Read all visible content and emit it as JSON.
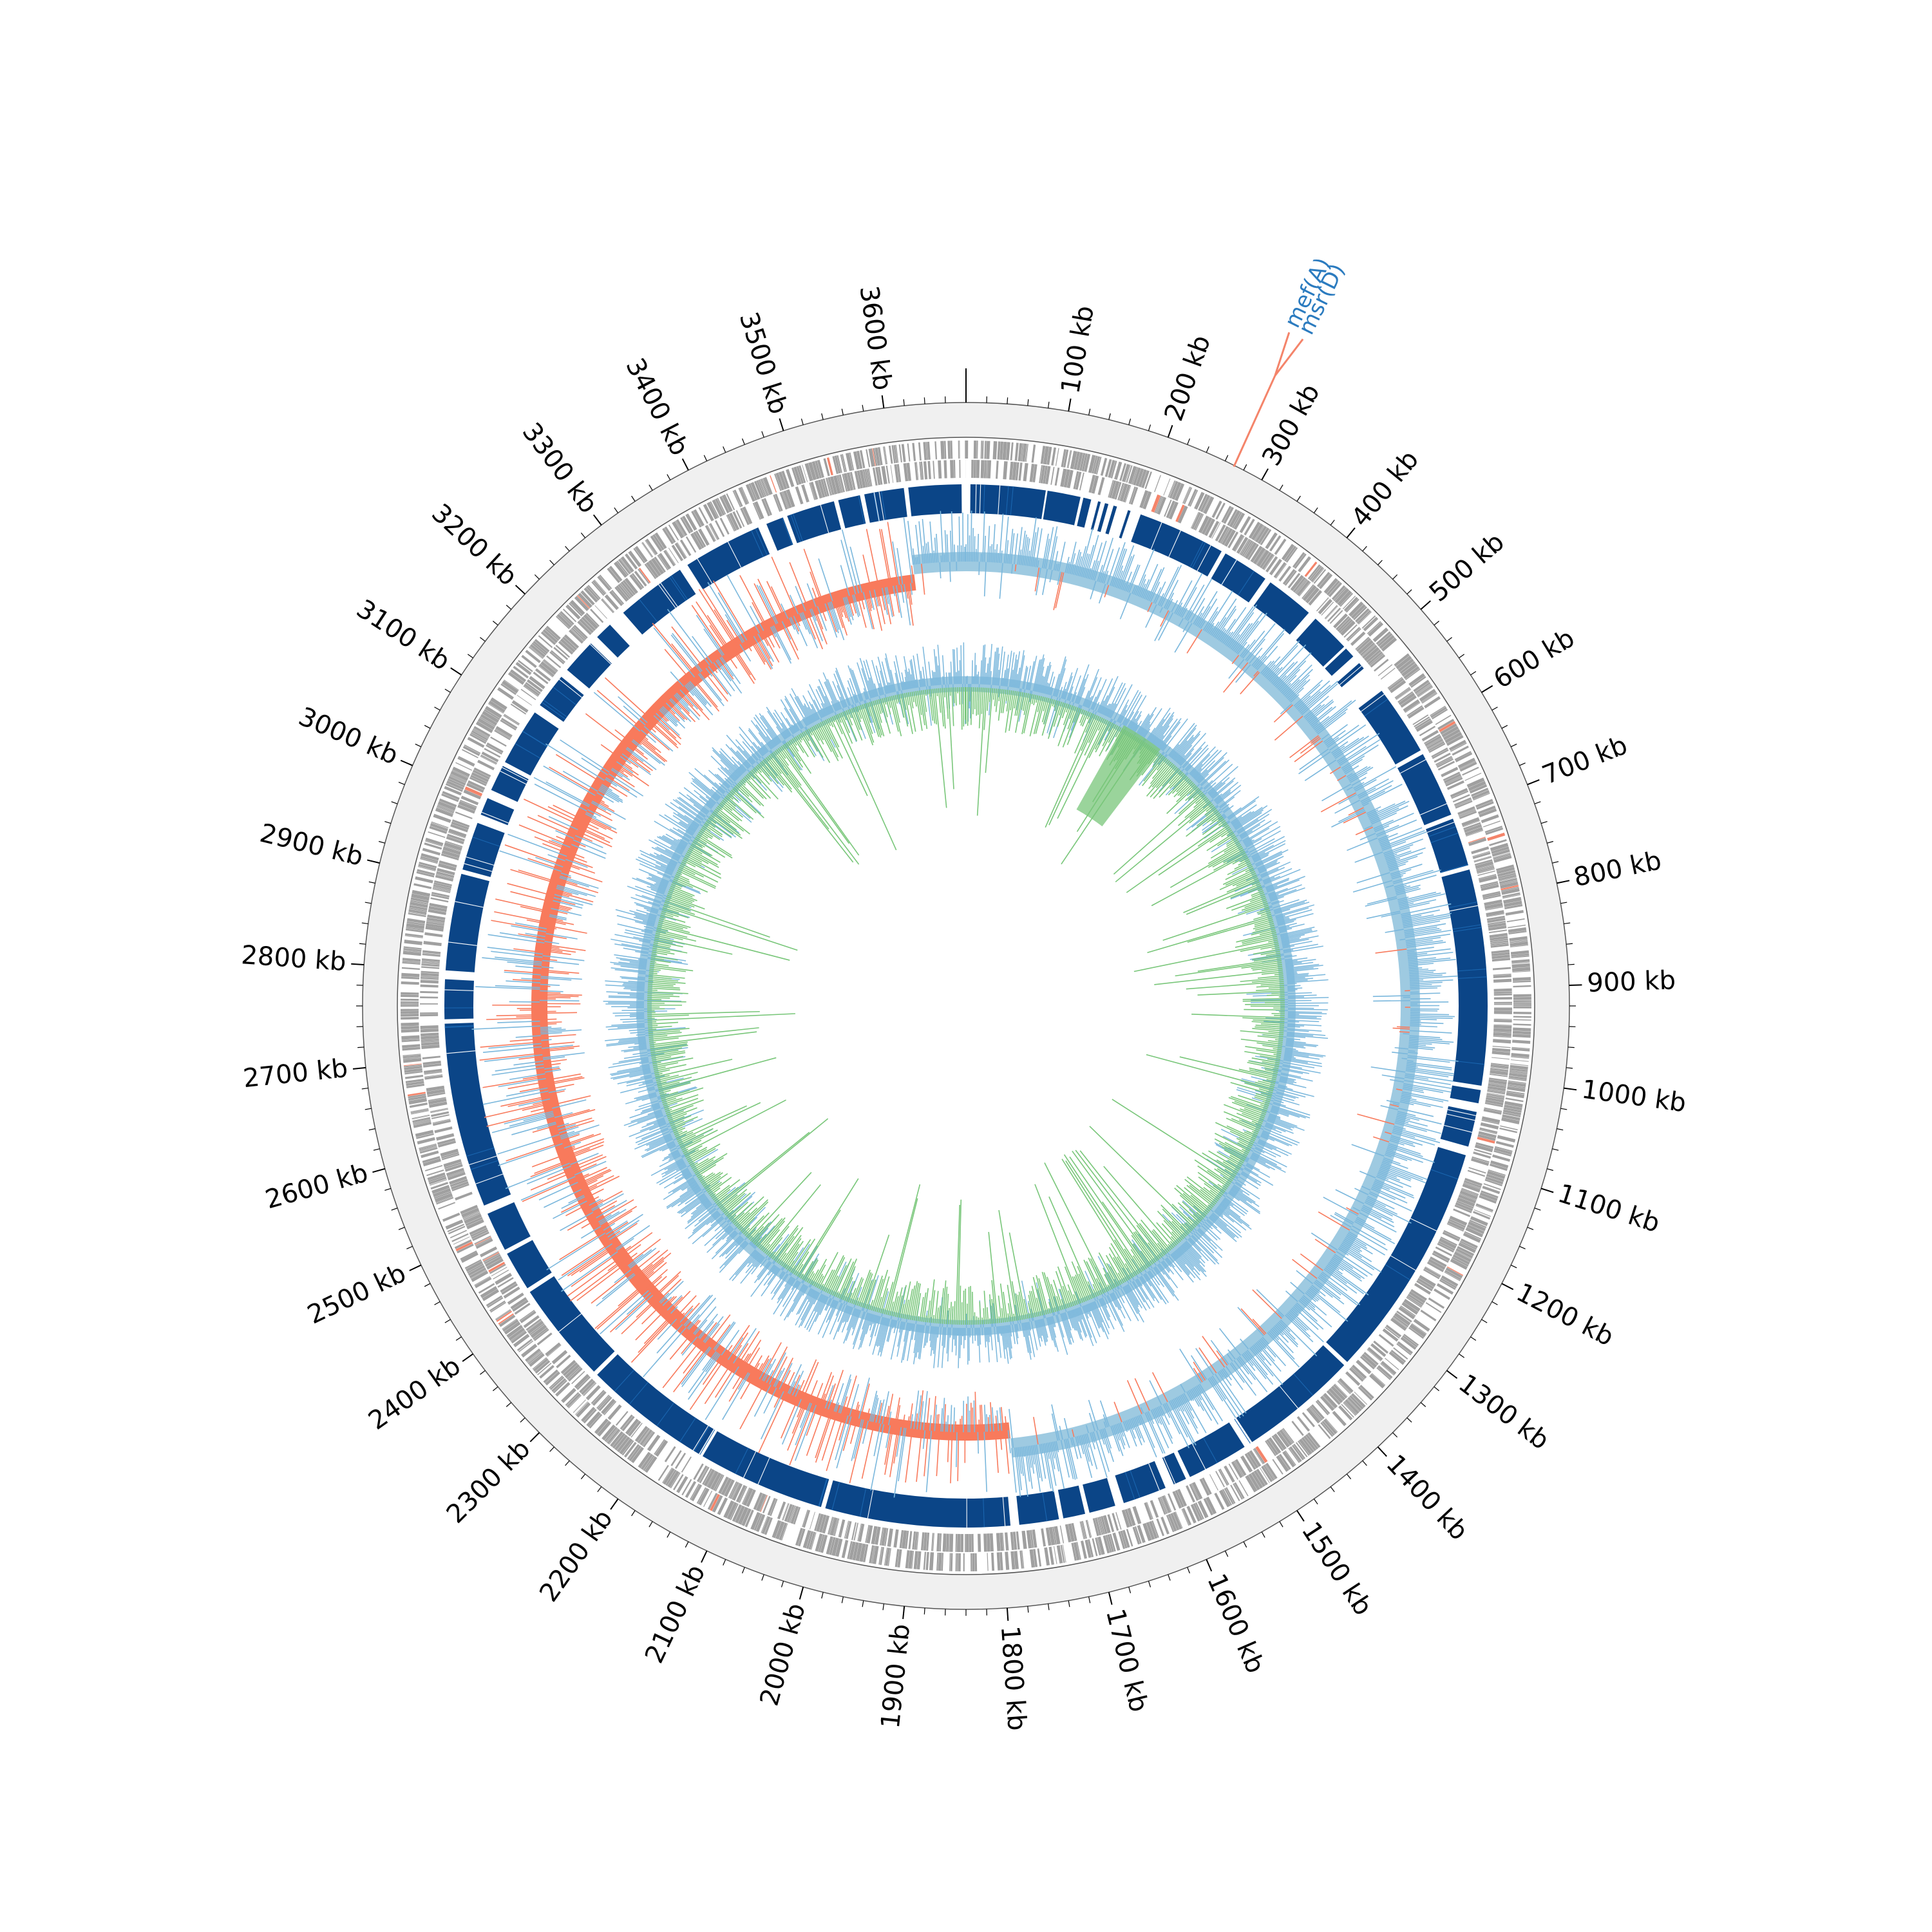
{
  "genome": {
    "length_kb": 3680,
    "tick_labels_kb": [
      100,
      200,
      300,
      400,
      500,
      600,
      700,
      800,
      900,
      1000,
      1100,
      1200,
      1300,
      1400,
      1500,
      1600,
      1700,
      1800,
      1900,
      2000,
      2100,
      2200,
      2300,
      2400,
      2500,
      2600,
      2700,
      2800,
      2900,
      3000,
      3100,
      3200,
      3300,
      3400,
      3500,
      3600
    ],
    "tick_unit": "kb"
  },
  "annotations": [
    {
      "label": "mef(A)",
      "position_kb": 270
    },
    {
      "label": "msr(D)",
      "position_kb": 270
    }
  ],
  "colors": {
    "ideogram": "#f0f0f0",
    "gene_gray": "#a0a0a0",
    "resistance_red": "#f4846a",
    "conserved_dark_blue": "#0b4587",
    "conserved_light_blue": "#1a66b0",
    "positive_blue": "#7ab7dc",
    "positive_blue_fill": "#9ecae1",
    "negative_red": "#f87a5c",
    "skew_green": "#78c679",
    "annotation_text": "#2b7bbf",
    "annotation_line": "#f4846a"
  },
  "tracks": [
    {
      "name": "genes",
      "type": "feature"
    },
    {
      "name": "conserved_regions",
      "type": "feature"
    },
    {
      "name": "gc_content",
      "type": "line"
    },
    {
      "name": "gc_skew",
      "type": "line"
    }
  ],
  "chart_data": {
    "type": "circular-genome",
    "genome_length_kb": 3680,
    "labelled_genes": [
      "mef(A)",
      "msr(D)"
    ],
    "gc_content_track": {
      "positive_color": "blue",
      "negative_color": "red",
      "negative_region_kb": [
        1780,
        3610
      ]
    },
    "gc_skew_track": {
      "positive_color": "blue",
      "negative_color": "green"
    }
  }
}
